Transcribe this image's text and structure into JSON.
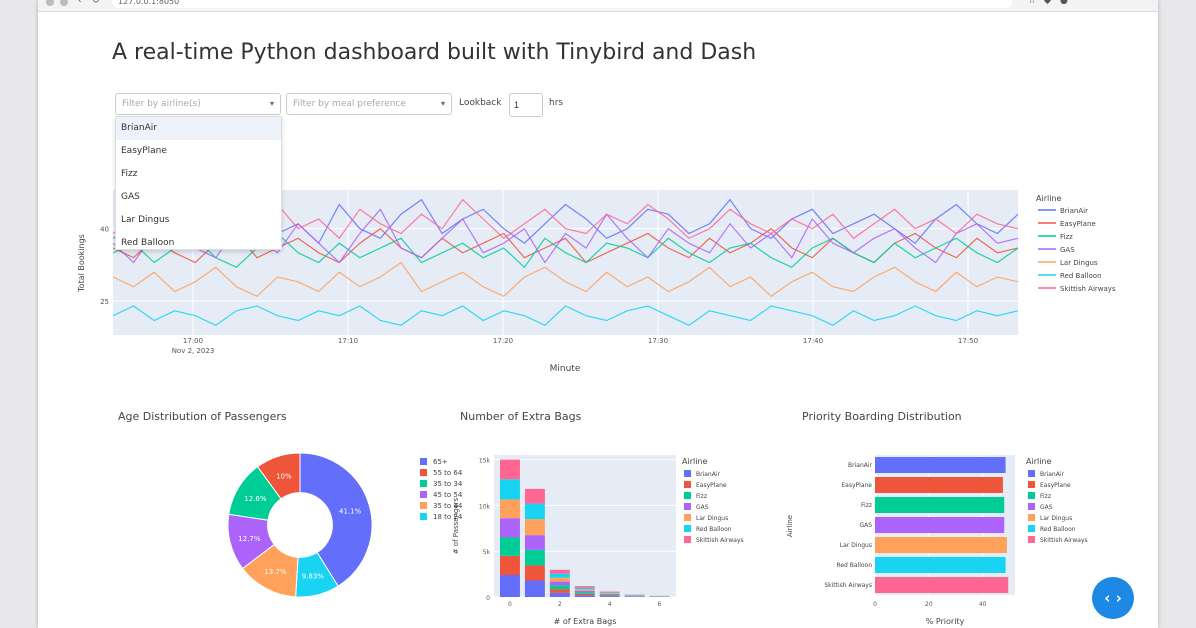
{
  "browser": {
    "url": "127.0.0.1:8050"
  },
  "page_title": "A real-time Python dashboard built with Tinybird and Dash",
  "controls": {
    "airline_placeholder": "Filter by airline(s)",
    "meal_placeholder": "Filter by meal preference",
    "lookback_label": "Lookback",
    "lookback_value": "1",
    "hrs_label": "hrs"
  },
  "airline_options": [
    "BrianAir",
    "EasyPlane",
    "Fizz",
    "GAS",
    "Lar Dingus",
    "Red Balloon"
  ],
  "colors": {
    "accent": "#1e88e5",
    "plot_bg": "#e5ecf6",
    "series": [
      "#636efa",
      "#ef553b",
      "#00cc96",
      "#ab63fa",
      "#ffa15a",
      "#19d3f3",
      "#ff6692"
    ]
  },
  "chart_data": [
    {
      "type": "line",
      "title": "",
      "xlabel": "Minute",
      "ylabel": "Total Bookings",
      "x_ticks": [
        "17:00",
        "17:10",
        "17:20",
        "17:30",
        "17:40",
        "17:50"
      ],
      "x_subtick": "Nov 2, 2023",
      "y_ticks": [
        "25",
        "40"
      ],
      "ylim": [
        18,
        48
      ],
      "legend_title": "Airline",
      "series": [
        {
          "name": "BrianAir",
          "values": [
            38,
            41,
            37,
            43,
            40,
            36,
            42,
            44,
            39,
            41,
            37,
            45,
            40,
            38,
            43,
            46,
            39,
            42,
            44,
            40,
            37,
            41,
            45,
            42,
            38,
            40,
            44,
            43,
            39,
            41,
            46,
            40,
            38,
            42,
            44,
            39,
            41,
            43,
            40,
            37,
            42,
            45,
            41,
            39,
            43
          ]
        },
        {
          "name": "EasyPlane",
          "values": [
            36,
            34,
            38,
            35,
            33,
            37,
            39,
            34,
            36,
            38,
            35,
            33,
            37,
            40,
            36,
            34,
            38,
            35,
            37,
            39,
            34,
            36,
            38,
            33,
            35,
            37,
            39,
            36,
            34,
            38,
            35,
            37,
            40,
            36,
            34,
            38,
            35,
            33,
            37,
            39,
            36,
            34,
            38,
            35,
            36
          ]
        },
        {
          "name": "Fizz",
          "values": [
            35,
            37,
            33,
            36,
            38,
            34,
            32,
            36,
            39,
            35,
            33,
            37,
            34,
            36,
            38,
            33,
            35,
            37,
            34,
            36,
            32,
            38,
            35,
            33,
            37,
            36,
            34,
            38,
            35,
            33,
            36,
            37,
            34,
            32,
            36,
            38,
            35,
            33,
            37,
            34,
            36,
            38,
            35,
            33,
            36
          ]
        },
        {
          "name": "GAS",
          "values": [
            37,
            33,
            39,
            42,
            36,
            34,
            40,
            38,
            35,
            41,
            37,
            33,
            39,
            44,
            36,
            34,
            38,
            42,
            35,
            37,
            40,
            33,
            39,
            36,
            43,
            38,
            34,
            40,
            37,
            35,
            41,
            36,
            39,
            34,
            42,
            37,
            35,
            38,
            40,
            36,
            33,
            39,
            41,
            37,
            38
          ]
        },
        {
          "name": "Lar Dingus",
          "values": [
            30,
            28,
            31,
            27,
            29,
            32,
            28,
            26,
            30,
            29,
            27,
            31,
            28,
            30,
            33,
            27,
            29,
            31,
            28,
            26,
            30,
            32,
            29,
            27,
            31,
            28,
            30,
            27,
            29,
            32,
            28,
            30,
            26,
            29,
            31,
            28,
            27,
            30,
            32,
            29,
            27,
            31,
            28,
            30,
            29
          ]
        },
        {
          "name": "Red Balloon",
          "values": [
            22,
            24,
            21,
            23,
            22,
            20,
            23,
            24,
            22,
            21,
            23,
            22,
            24,
            21,
            20,
            23,
            22,
            24,
            21,
            23,
            22,
            20,
            24,
            22,
            21,
            23,
            24,
            22,
            20,
            23,
            22,
            21,
            24,
            23,
            22,
            20,
            23,
            21,
            22,
            24,
            22,
            21,
            23,
            22,
            23
          ]
        },
        {
          "name": "Skittish Airways",
          "values": [
            39,
            42,
            40,
            44,
            38,
            41,
            43,
            39,
            45,
            40,
            42,
            38,
            44,
            41,
            39,
            43,
            40,
            46,
            42,
            38,
            41,
            44,
            40,
            39,
            43,
            41,
            45,
            42,
            38,
            40,
            44,
            41,
            39,
            42,
            40,
            43,
            38,
            41,
            44,
            40,
            42,
            39,
            43,
            41,
            40
          ]
        }
      ]
    },
    {
      "type": "pie",
      "title": "Age Distribution of Passengers",
      "hole": 0.45,
      "legend": [
        "65+",
        "55 to 64",
        "35 to 34",
        "45 to 54",
        "35 to 44",
        "18 to 24"
      ],
      "slices": [
        {
          "label": "65+",
          "value": 41.1,
          "text": "41.1%"
        },
        {
          "label": "18 to 24",
          "value": 9.83,
          "text": "9.83%"
        },
        {
          "label": "35 to 44",
          "value": 13.7,
          "text": "13.7%"
        },
        {
          "label": "45 to 54",
          "value": 12.7,
          "text": "12.7%"
        },
        {
          "label": "35 to 34",
          "value": 12.6,
          "text": "12.6%"
        },
        {
          "label": "55 to 64",
          "value": 10.0,
          "text": "10%"
        }
      ]
    },
    {
      "type": "bar",
      "title": "Number of Extra Bags",
      "xlabel": "# of Extra Bags",
      "ylabel": "# of Passengers",
      "stacked": true,
      "categories": [
        0,
        1,
        2,
        3,
        4,
        5,
        6
      ],
      "x_ticks": [
        "0",
        "2",
        "4",
        "6"
      ],
      "y_ticks": [
        "0",
        "5k",
        "10k",
        "15k"
      ],
      "ylim": [
        0,
        15500
      ],
      "legend_title": "Airline",
      "series": [
        {
          "name": "BrianAir",
          "values": [
            2400,
            1800,
            450,
            180,
            90,
            40,
            20
          ]
        },
        {
          "name": "EasyPlane",
          "values": [
            2100,
            1650,
            400,
            160,
            80,
            35,
            15
          ]
        },
        {
          "name": "Fizz",
          "values": [
            2000,
            1700,
            420,
            170,
            85,
            38,
            18
          ]
        },
        {
          "name": "GAS",
          "values": [
            2100,
            1600,
            410,
            165,
            82,
            36,
            16
          ]
        },
        {
          "name": "Lar Dingus",
          "values": [
            2050,
            1750,
            430,
            175,
            88,
            39,
            17
          ]
        },
        {
          "name": "Red Balloon",
          "values": [
            2200,
            1700,
            440,
            172,
            86,
            37,
            19
          ]
        },
        {
          "name": "Skittish Airways",
          "values": [
            2150,
            1600,
            420,
            168,
            84,
            36,
            18
          ]
        }
      ]
    },
    {
      "type": "bar",
      "orientation": "horizontal",
      "title": "Priority Boarding Distribution",
      "xlabel": "% Priority",
      "ylabel": "Airline",
      "categories": [
        "BrianAir",
        "EasyPlane",
        "Fizz",
        "GAS",
        "Lar Dingus",
        "Red Balloon",
        "Skittish Airways"
      ],
      "values": [
        48.5,
        47.5,
        48.0,
        48.0,
        49.0,
        48.5,
        49.5
      ],
      "x_ticks": [
        "0",
        "20",
        "40"
      ],
      "xlim": [
        0,
        52
      ],
      "legend_title": "Airline"
    }
  ]
}
